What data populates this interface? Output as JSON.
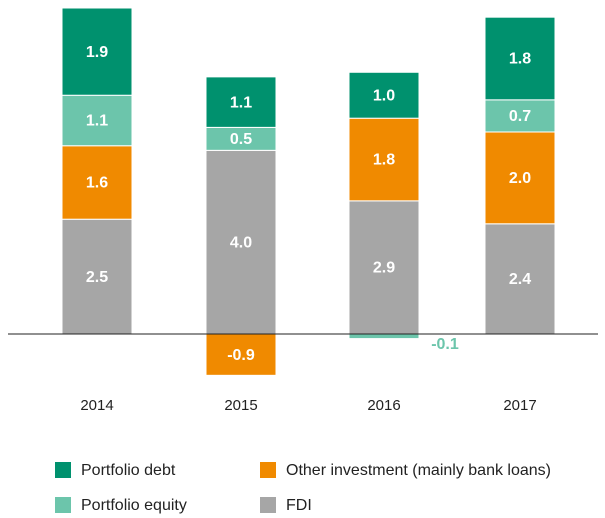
{
  "chart_data": {
    "type": "stacked-bar",
    "categories": [
      "2014",
      "2015",
      "2016",
      "2017"
    ],
    "series": [
      {
        "name": "Portfolio debt",
        "color": "#00916e",
        "values": [
          1.9,
          1.1,
          1.0,
          1.8
        ],
        "value_labels": [
          "1.9",
          "1.1",
          "1.0",
          "1.8"
        ]
      },
      {
        "name": "Other investment (mainly bank loans)",
        "color": "#f08a00",
        "values": [
          1.6,
          -0.9,
          1.8,
          2.0
        ],
        "value_labels": [
          "1.6",
          "-0.9",
          "1.8",
          "2.0"
        ]
      },
      {
        "name": "Portfolio equity",
        "color": "#6cc5ab",
        "values": [
          1.1,
          0.5,
          -0.1,
          0.7
        ],
        "value_labels": [
          "1.1",
          "0.5",
          "-0.1",
          "0.7"
        ]
      },
      {
        "name": "FDI",
        "color": "#a6a6a6",
        "values": [
          2.5,
          4.0,
          2.9,
          2.4
        ],
        "value_labels": [
          "2.5",
          "4.0",
          "2.9",
          "2.4"
        ]
      }
    ]
  }
}
